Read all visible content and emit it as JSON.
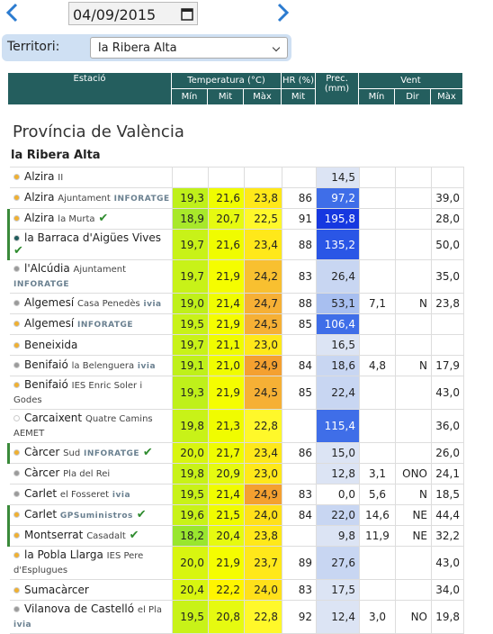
{
  "toolbar": {
    "date": "04/09/2015",
    "territory_label": "Territori:",
    "territory": "la Ribera Alta"
  },
  "table": {
    "header": {
      "station": "Estació",
      "temp": "Temperatura (°C)",
      "hr": "HR (%)",
      "prec": "Prec. (mm)",
      "wind": "Vent",
      "sub": [
        "Mín",
        "Mit",
        "Màx",
        "Mit",
        "Mín",
        "Dir",
        "Màx"
      ]
    },
    "province": "Província de València",
    "region": "la Ribera Alta",
    "rows": [
      {
        "name": "Alzira",
        "sub": "II",
        "brand": null,
        "check": false,
        "dot": "#f0b030",
        "cells": [
          null,
          null,
          null,
          null,
          "14,5",
          null,
          null,
          null
        ],
        "colors": [
          null,
          null,
          null,
          null,
          "#dce4f4",
          null,
          null,
          null
        ]
      },
      {
        "name": "Alzira",
        "sub": "Ajuntament",
        "brand": "INFORATGE",
        "check": false,
        "dot": "#f0b030",
        "cells": [
          "19,3",
          "21,6",
          "23,8",
          "86",
          "97,2",
          null,
          null,
          "39,0"
        ],
        "colors": [
          "#bff01a",
          "#f0fc00",
          "#ffe81a",
          null,
          "#3f6ee8",
          null,
          null,
          null
        ]
      },
      {
        "name": "Alzira",
        "sub": "la Murta",
        "brand": null,
        "check": true,
        "dot": "#f0b030",
        "cells": [
          "18,9",
          "20,7",
          "22,5",
          "91",
          "195,8",
          null,
          null,
          "28,0"
        ],
        "colors": [
          "#a8e82a",
          "#e6fa10",
          "#fff82a",
          null,
          "#1638e0",
          null,
          null,
          null
        ]
      },
      {
        "name": "la Barraca d'Aigües Vives",
        "sub": null,
        "brand": null,
        "check": true,
        "dot": "#1e5c5c",
        "cells": [
          "19,7",
          "21,6",
          "23,4",
          "88",
          "135,2",
          null,
          null,
          "50,0"
        ],
        "colors": [
          "#c8f218",
          "#f0fc00",
          "#ffe81a",
          null,
          "#2a56e6",
          null,
          null,
          null
        ]
      },
      {
        "name": "l'Alcúdia",
        "sub": "Ajuntament",
        "brand": "INFORATGE",
        "check": false,
        "dot": "#9a9a9a",
        "cells": [
          "19,7",
          "21,9",
          "24,2",
          "83",
          "26,4",
          null,
          null,
          "35,0"
        ],
        "colors": [
          "#c8f218",
          "#f5fd00",
          "#f8c030",
          null,
          "#c8d6f2",
          null,
          null,
          null
        ]
      },
      {
        "name": "Algemesí",
        "sub": "Casa Penedès",
        "brand": "ivia",
        "check": false,
        "dot": "#9a9a9a",
        "cells": [
          "19,0",
          "21,4",
          "24,7",
          "88",
          "53,1",
          "7,1",
          "N",
          "23,8"
        ],
        "colors": [
          "#bff01a",
          "#f0fc00",
          "#f6b035",
          null,
          "#a8bff0",
          null,
          null,
          null
        ]
      },
      {
        "name": "Algemesí",
        "sub": null,
        "brand": "INFORATGE",
        "check": false,
        "dot": "#f0b030",
        "cells": [
          "19,5",
          "21,9",
          "24,5",
          "85",
          "106,4",
          null,
          null,
          null
        ],
        "colors": [
          "#c8f218",
          "#f5fd00",
          "#f6b035",
          null,
          "#3f6ee8",
          null,
          null,
          null
        ]
      },
      {
        "name": "Beneixida",
        "sub": null,
        "brand": null,
        "check": false,
        "dot": "#f0b030",
        "cells": [
          "19,7",
          "21,1",
          "23,0",
          null,
          "16,5",
          null,
          null,
          null
        ],
        "colors": [
          "#c8f218",
          "#f0fc00",
          "#ffe81a",
          null,
          "#dce4f4",
          null,
          null,
          null
        ]
      },
      {
        "name": "Benifaió",
        "sub": "la Belenguera",
        "brand": "ivia",
        "check": false,
        "dot": "#9a9a9a",
        "cells": [
          "19,1",
          "21,0",
          "24,9",
          "84",
          "18,6",
          "4,8",
          "N",
          "17,9"
        ],
        "colors": [
          "#bff01a",
          "#f0fc00",
          "#f4a030",
          null,
          "#c8d6f2",
          null,
          null,
          null
        ]
      },
      {
        "name": "Benifaió",
        "sub": "IES Enric Soler i Godes",
        "brand": null,
        "check": false,
        "dot": "#f0b030",
        "cells": [
          "19,3",
          "21,9",
          "24,5",
          "85",
          "22,4",
          null,
          null,
          "43,0"
        ],
        "colors": [
          "#bff01a",
          "#f5fd00",
          "#f6b035",
          null,
          "#c8d6f2",
          null,
          null,
          null
        ]
      },
      {
        "name": "Carcaixent",
        "sub": "Quatre Camins AEMET",
        "brand": null,
        "check": false,
        "dot": "#ffffff",
        "cells": [
          "19,8",
          "21,3",
          "22,8",
          null,
          "115,4",
          null,
          null,
          "36,0"
        ],
        "colors": [
          "#c8f218",
          "#f0fc00",
          "#fff82a",
          null,
          "#3f6ee8",
          null,
          null,
          null
        ]
      },
      {
        "name": "Càrcer",
        "sub": "Sud",
        "brand": "INFORATGE",
        "check": true,
        "dot": "#f0b030",
        "cells": [
          "20,0",
          "21,7",
          "23,4",
          "86",
          "15,0",
          null,
          null,
          "26,0"
        ],
        "colors": [
          "#d8f510",
          "#f0fc00",
          "#ffe81a",
          null,
          "#dce4f4",
          null,
          null,
          null
        ]
      },
      {
        "name": "Càrcer",
        "sub": "Pla del Rei",
        "brand": null,
        "check": false,
        "dot": "#9a9a9a",
        "cells": [
          "19,8",
          "20,9",
          "23,0",
          null,
          "12,8",
          "3,1",
          "ONO",
          "24,1"
        ],
        "colors": [
          "#c8f218",
          "#e6fa10",
          "#ffe81a",
          null,
          "#dce4f4",
          null,
          null,
          null
        ]
      },
      {
        "name": "Carlet",
        "sub": "el Fosseret",
        "brand": "ivia",
        "check": false,
        "dot": "#9a9a9a",
        "cells": [
          "19,5",
          "21,4",
          "24,9",
          "83",
          "0,0",
          "5,6",
          "N",
          "18,5"
        ],
        "colors": [
          "#c8f218",
          "#f0fc00",
          "#f4a030",
          null,
          null,
          null,
          null,
          null
        ]
      },
      {
        "name": "Carlet",
        "sub": null,
        "brand": "GPSuministros",
        "check": true,
        "dot": "#f0b030",
        "cells": [
          "19,6",
          "21,5",
          "24,0",
          "84",
          "22,0",
          "14,6",
          "NE",
          "44,4"
        ],
        "colors": [
          "#c8f218",
          "#f0fc00",
          "#ffe01a",
          null,
          "#c8d6f2",
          null,
          null,
          null
        ]
      },
      {
        "name": "Montserrat",
        "sub": "Casadalt",
        "brand": null,
        "check": true,
        "dot": "#f0b030",
        "cells": [
          "18,2",
          "20,4",
          "23,8",
          null,
          "9,8",
          "11,9",
          "NE",
          "32,2"
        ],
        "colors": [
          "#99e62e",
          "#e6fa10",
          "#ffe81a",
          null,
          "#dce4f4",
          null,
          null,
          null
        ]
      },
      {
        "name": "la Pobla Llarga",
        "sub": "IES Pere d'Esplugues",
        "brand": null,
        "check": false,
        "dot": "#f0b030",
        "cells": [
          "20,0",
          "21,9",
          "23,7",
          "89",
          "27,6",
          null,
          null,
          "43,0"
        ],
        "colors": [
          "#d8f510",
          "#f5fd00",
          "#ffe81a",
          null,
          "#c8d6f2",
          null,
          null,
          null
        ]
      },
      {
        "name": "Sumacàrcer",
        "sub": null,
        "brand": null,
        "check": false,
        "dot": "#f0b030",
        "cells": [
          "20,4",
          "22,2",
          "24,0",
          "83",
          "17,5",
          null,
          null,
          "34,0"
        ],
        "colors": [
          "#d8f510",
          "#fff500",
          "#ffe01a",
          null,
          "#dce4f4",
          null,
          null,
          null
        ]
      },
      {
        "name": "Vilanova de Castelló",
        "sub": "el Pla",
        "brand": "ivia",
        "check": false,
        "dot": "#9a9a9a",
        "cells": [
          "19,5",
          "20,8",
          "22,8",
          "92",
          "12,4",
          "3,0",
          "NO",
          "19,8"
        ],
        "colors": [
          "#c8f218",
          "#e6fa10",
          "#fff82a",
          null,
          "#dce4f4",
          null,
          null,
          null
        ]
      }
    ]
  }
}
